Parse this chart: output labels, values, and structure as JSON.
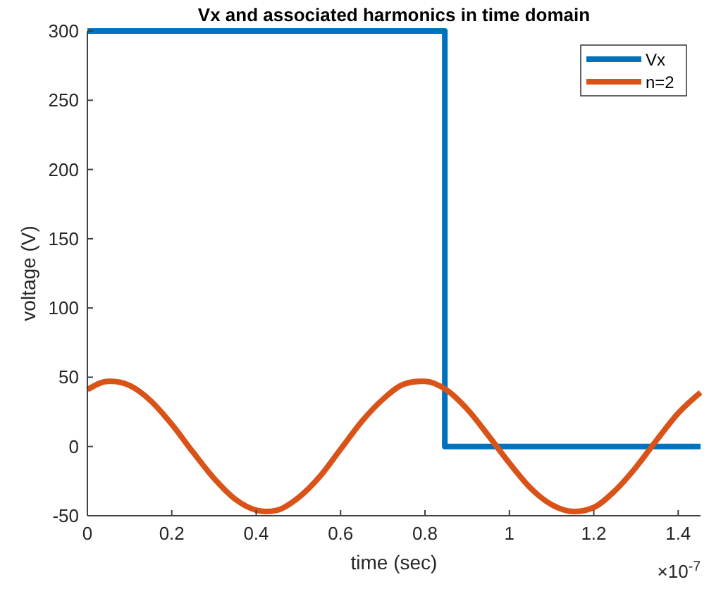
{
  "chart_data": {
    "type": "line",
    "title": "Vx and associated harmonics in time domain",
    "xlabel": "time (sec)",
    "ylabel": "voltage (V)",
    "annotations": [
      "×10$^{-7}$"
    ],
    "xlim": [
      0,
      1.453
    ],
    "ylim": [
      -50,
      300
    ],
    "xticks": [
      0,
      0.2,
      0.4,
      0.6,
      0.8,
      1,
      1.2,
      1.4
    ],
    "yticks": [
      -50,
      0,
      50,
      100,
      150,
      200,
      250,
      300
    ],
    "grid": false,
    "legend": "top right",
    "marker": "none",
    "line_style": "solid",
    "series": [
      {
        "name": "Vx",
        "color": "#0072bd",
        "x": [
          0,
          0.847,
          0.847,
          1.453
        ],
        "values": [
          300,
          300,
          0,
          0
        ]
      },
      {
        "name": "n=2",
        "color": "#d95319",
        "x": [
          0,
          0.05,
          0.058,
          0.1,
          0.15,
          0.2,
          0.25,
          0.3,
          0.35,
          0.4,
          0.423,
          0.45,
          0.5,
          0.55,
          0.6,
          0.65,
          0.7,
          0.75,
          0.788,
          0.8,
          0.85,
          0.9,
          0.95,
          1.0,
          1.05,
          1.1,
          1.153,
          1.2,
          1.25,
          1.3,
          1.35,
          1.4,
          1.453
        ],
        "values": [
          41,
          47,
          47,
          44,
          33,
          16,
          -4,
          -23,
          -38,
          -46,
          -47,
          -46,
          -37,
          -22,
          -2,
          18,
          34,
          45,
          47,
          47,
          41,
          27,
          8,
          -12,
          -30,
          -42,
          -47,
          -44,
          -32,
          -15,
          5,
          24,
          39
        ]
      }
    ]
  }
}
